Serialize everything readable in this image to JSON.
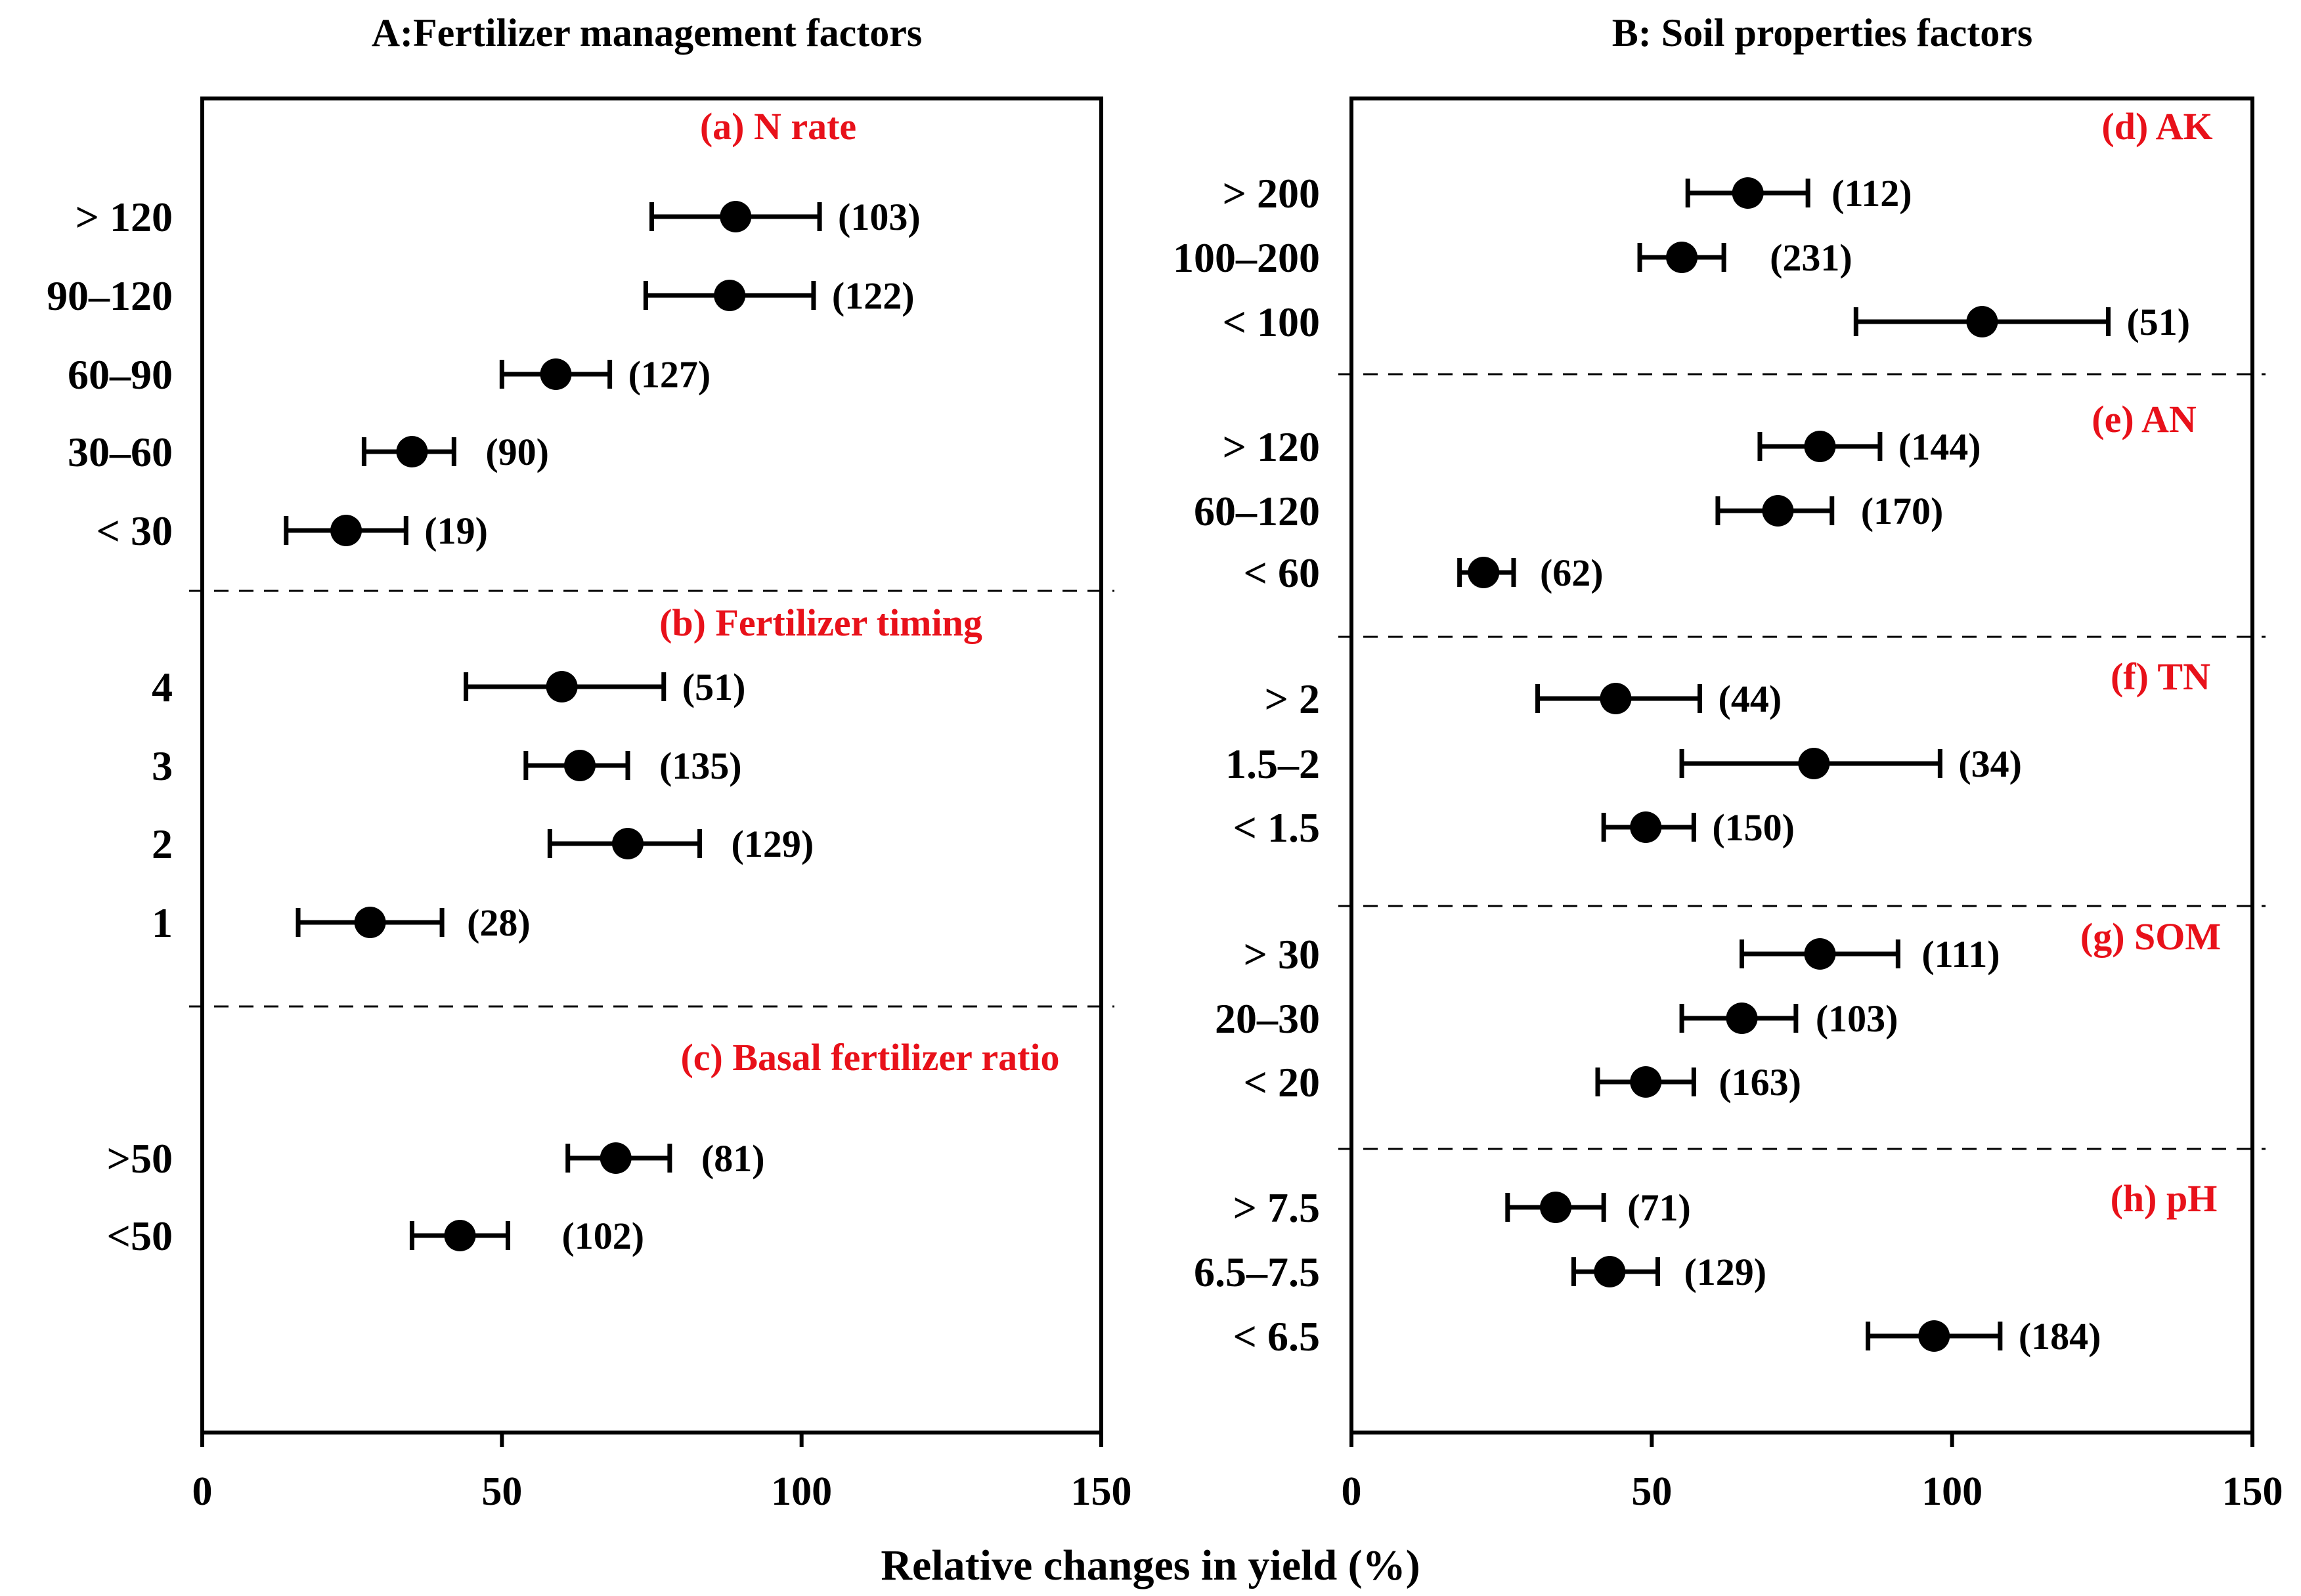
{
  "figure": {
    "xlabel": "Relative changes in yield (%)",
    "colors": {
      "group_label": "#e8111a",
      "marks": "#000000",
      "divider": "#000000"
    }
  },
  "chart_data": [
    {
      "type": "forest",
      "id": "A",
      "title": "A:Fertilizer management factors",
      "xlim": [
        0,
        150
      ],
      "xticks": [
        0,
        50,
        100,
        150
      ],
      "groups": [
        {
          "label": "(a) N  rate",
          "rows": [
            {
              "category": "> 120",
              "mean": 89,
              "low": 75,
              "high": 103,
              "n": "(103)"
            },
            {
              "category": "90–120",
              "mean": 88,
              "low": 74,
              "high": 102,
              "n": "(122)"
            },
            {
              "category": "60–90",
              "mean": 59,
              "low": 50,
              "high": 68,
              "n": "(127)"
            },
            {
              "category": "30–60",
              "mean": 35,
              "low": 27,
              "high": 42,
              "n": "(90)"
            },
            {
              "category": "< 30",
              "mean": 24,
              "low": 14,
              "high": 34,
              "n": "(19)"
            }
          ]
        },
        {
          "label": "(b) Fertilizer timing",
          "rows": [
            {
              "category": "4",
              "mean": 60,
              "low": 44,
              "high": 77,
              "n": "(51)"
            },
            {
              "category": "3",
              "mean": 63,
              "low": 54,
              "high": 71,
              "n": "(135)"
            },
            {
              "category": "2",
              "mean": 71,
              "low": 58,
              "high": 83,
              "n": "(129)"
            },
            {
              "category": "1",
              "mean": 28,
              "low": 16,
              "high": 40,
              "n": "(28)"
            }
          ]
        },
        {
          "label": "(c) Basal fertilizer ratio",
          "rows": [
            {
              "category": ">50",
              "mean": 69,
              "low": 61,
              "high": 78,
              "n": "(81)"
            },
            {
              "category": "<50",
              "mean": 43,
              "low": 35,
              "high": 51,
              "n": "(102)"
            }
          ]
        }
      ]
    },
    {
      "type": "forest",
      "id": "B",
      "title": "B: Soil properties factors",
      "xlim": [
        0,
        150
      ],
      "xticks": [
        0,
        50,
        100,
        150
      ],
      "groups": [
        {
          "label": "(d) AK",
          "rows": [
            {
              "category": "> 200",
              "mean": 66,
              "low": 56,
              "high": 76,
              "n": "(112)"
            },
            {
              "category": "100–200",
              "mean": 55,
              "low": 48,
              "high": 62,
              "n": "(231)"
            },
            {
              "category": "< 100",
              "mean": 105,
              "low": 84,
              "high": 126,
              "n": "(51)"
            }
          ]
        },
        {
          "label": "(e) AN",
          "rows": [
            {
              "category": "> 120",
              "mean": 78,
              "low": 68,
              "high": 88,
              "n": "(144)"
            },
            {
              "category": "60–120",
              "mean": 71,
              "low": 61,
              "high": 80,
              "n": "(170)"
            },
            {
              "category": "< 60",
              "mean": 22,
              "low": 18,
              "high": 27,
              "n": "(62)"
            }
          ]
        },
        {
          "label": "(f) TN",
          "rows": [
            {
              "category": "> 2",
              "mean": 44,
              "low": 31,
              "high": 58,
              "n": "(44)"
            },
            {
              "category": "1.5–2",
              "mean": 77,
              "low": 55,
              "high": 98,
              "n": "(34)"
            },
            {
              "category": "< 1.5",
              "mean": 49,
              "low": 42,
              "high": 57,
              "n": "(150)"
            }
          ]
        },
        {
          "label": "(g) SOM",
          "rows": [
            {
              "category": "> 30",
              "mean": 78,
              "low": 65,
              "high": 91,
              "n": "(111)"
            },
            {
              "category": "20–30",
              "mean": 65,
              "low": 55,
              "high": 74,
              "n": "(103)"
            },
            {
              "category": "< 20",
              "mean": 49,
              "low": 41,
              "high": 57,
              "n": "(163)"
            }
          ]
        },
        {
          "label": "(h) pH",
          "rows": [
            {
              "category": "> 7.5",
              "mean": 34,
              "low": 26,
              "high": 42,
              "n": "(71)"
            },
            {
              "category": "6.5–7.5",
              "mean": 43,
              "low": 37,
              "high": 51,
              "n": "(129)"
            },
            {
              "category": "< 6.5",
              "mean": 97,
              "low": 86,
              "high": 108,
              "n": "(184)"
            }
          ]
        }
      ]
    }
  ]
}
